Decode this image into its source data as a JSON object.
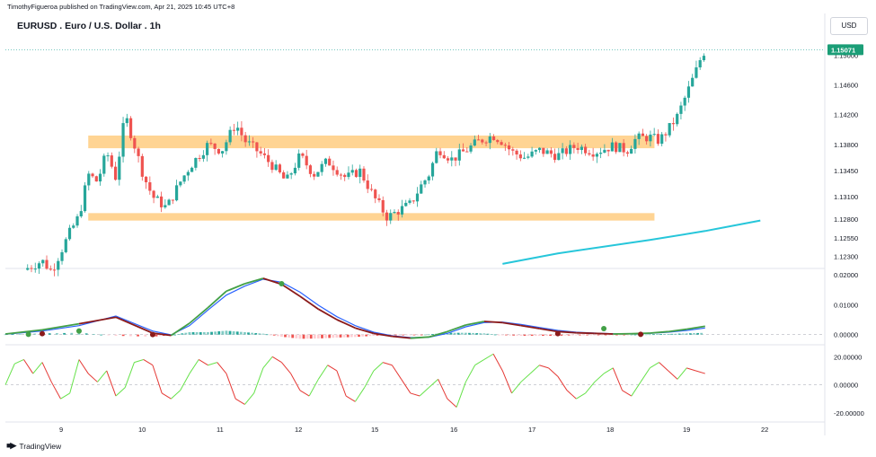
{
  "header": {
    "published_line": "TimothyFigueroa published on TradingView.com, Apr 21, 2025 10:45 UTC+8",
    "symbol_title": "EURUSD . Euro / U.S. Dollar . 1h",
    "currency_button": "USD"
  },
  "footer": {
    "logo_text": "TradingView"
  },
  "colors": {
    "up_candle": "#26a69a",
    "down_candle": "#ef5350",
    "zone_fill": "#ffcc80",
    "ma_line": "#26c6da",
    "macd_line": "#2962ff",
    "signal_green": "#43a047",
    "signal_red": "#8b1a1a",
    "oscillator_up": "#66e24a",
    "oscillator_down": "#e53935"
  },
  "chart_data": [
    {
      "type": "candlestick",
      "title": "EURUSD . Euro / U.S. Dollar . 1h",
      "x_tick_labels": [
        "9",
        "10",
        "11",
        "12",
        "15",
        "16",
        "17",
        "18",
        "19",
        "22"
      ],
      "y_tick_labels": [
        "1.15000",
        "1.14600",
        "1.14200",
        "1.13800",
        "1.13450",
        "1.13100",
        "1.12800",
        "1.12550",
        "1.12300"
      ],
      "last_price_label": "1.15071",
      "ylim": [
        1.1215,
        1.1528
      ],
      "zones": [
        {
          "from": 1.1375,
          "to": 1.1392
        },
        {
          "from": 1.1278,
          "to": 1.1288
        }
      ],
      "moving_average": [
        [
          4.4,
          1.122
        ],
        [
          5.0,
          1.1234
        ],
        [
          6.0,
          1.1252
        ],
        [
          6.6,
          1.1264
        ],
        [
          7.2,
          1.1278
        ]
      ],
      "close_path": [
        [
          -0.8,
          1.1212
        ],
        [
          -0.6,
          1.1224
        ],
        [
          -0.5,
          1.121
        ],
        [
          -0.3,
          1.1262
        ],
        [
          -0.2,
          1.1284
        ],
        [
          -0.1,
          1.134
        ],
        [
          0.0,
          1.133
        ],
        [
          0.1,
          1.137
        ],
        [
          0.2,
          1.1335
        ],
        [
          0.3,
          1.142
        ],
        [
          0.4,
          1.138
        ],
        [
          0.5,
          1.1338
        ],
        [
          0.6,
          1.131
        ],
        [
          0.75,
          1.1295
        ],
        [
          0.9,
          1.133
        ],
        [
          1.0,
          1.135
        ],
        [
          1.2,
          1.138
        ],
        [
          1.35,
          1.1372
        ],
        [
          1.5,
          1.1408
        ],
        [
          1.6,
          1.1385
        ],
        [
          1.75,
          1.137
        ],
        [
          1.9,
          1.1352
        ],
        [
          2.05,
          1.133
        ],
        [
          2.2,
          1.1365
        ],
        [
          2.35,
          1.134
        ],
        [
          2.5,
          1.1358
        ],
        [
          2.7,
          1.1335
        ],
        [
          2.85,
          1.1345
        ],
        [
          3.0,
          1.131
        ],
        [
          3.15,
          1.1282
        ],
        [
          3.25,
          1.129
        ],
        [
          3.4,
          1.13
        ],
        [
          3.5,
          1.1322
        ],
        [
          3.6,
          1.134
        ],
        [
          3.7,
          1.1375
        ],
        [
          3.85,
          1.136
        ],
        [
          4.0,
          1.1372
        ],
        [
          4.15,
          1.1385
        ],
        [
          4.3,
          1.1392
        ],
        [
          4.4,
          1.1384
        ],
        [
          4.5,
          1.137
        ],
        [
          4.65,
          1.1362
        ],
        [
          4.8,
          1.1372
        ],
        [
          5.0,
          1.1365
        ],
        [
          5.2,
          1.1378
        ],
        [
          5.4,
          1.137
        ],
        [
          5.6,
          1.1378
        ],
        [
          5.75,
          1.1372
        ],
        [
          5.85,
          1.1388
        ],
        [
          6.0,
          1.139
        ],
        [
          6.1,
          1.1385
        ],
        [
          6.2,
          1.14
        ],
        [
          6.3,
          1.1418
        ],
        [
          6.4,
          1.1448
        ],
        [
          6.5,
          1.1478
        ],
        [
          6.55,
          1.1495
        ],
        [
          6.6,
          1.1507
        ]
      ]
    },
    {
      "type": "line",
      "title": "",
      "y_tick_labels": [
        "0.02000",
        "0.01000",
        "0.00000"
      ],
      "ylim": [
        -0.0028,
        0.0218
      ],
      "zero_line": 0.0,
      "series": [
        {
          "values_x": [
            -1.0,
            -0.6,
            -0.2,
            0.2,
            0.6,
            0.8,
            1.0,
            1.2,
            1.4,
            1.6,
            1.8,
            2.0,
            2.2,
            2.4,
            2.6,
            2.8,
            3.0,
            3.2,
            3.4,
            3.6,
            3.8,
            4.0,
            4.2,
            4.4,
            4.6,
            4.8,
            5.0,
            5.2,
            5.4,
            5.6,
            5.8,
            6.0,
            6.2,
            6.4,
            6.6
          ],
          "values": [
            0.0002,
            0.0016,
            0.0036,
            0.0058,
            0.0005,
            -0.0003,
            0.0038,
            0.009,
            0.0145,
            0.017,
            0.0188,
            0.0168,
            0.0128,
            0.0085,
            0.005,
            0.0022,
            0.0004,
            -0.0006,
            -0.0012,
            -0.0008,
            0.001,
            0.0032,
            0.0044,
            0.004,
            0.003,
            0.002,
            0.001,
            0.0006,
            0.0004,
            0.0002,
            0.0003,
            0.0005,
            0.001,
            0.0018,
            0.0028
          ]
        },
        {
          "values_x": [
            -1.0,
            -0.6,
            -0.2,
            0.2,
            0.6,
            0.8,
            1.0,
            1.2,
            1.4,
            1.6,
            1.8,
            2.0,
            2.2,
            2.4,
            2.6,
            2.8,
            3.0,
            3.2,
            3.4,
            3.6,
            3.8,
            4.0,
            4.2,
            4.4,
            4.6,
            4.8,
            5.0,
            5.2,
            5.4,
            5.6,
            5.8,
            6.0,
            6.2,
            6.4,
            6.6
          ],
          "values": [
            0.0001,
            0.0012,
            0.003,
            0.0062,
            0.0012,
            -0.0001,
            0.003,
            0.0082,
            0.0132,
            0.0162,
            0.0185,
            0.0175,
            0.0142,
            0.0098,
            0.006,
            0.003,
            0.0008,
            -0.0004,
            -0.001,
            -0.0009,
            0.0004,
            0.0026,
            0.004,
            0.0042,
            0.0034,
            0.0024,
            0.0014,
            0.0008,
            0.0005,
            0.0003,
            0.0003,
            0.0004,
            0.0008,
            0.0014,
            0.0022
          ]
        },
        {
          "values_x": [
            -1.0,
            -0.6,
            -0.2,
            0.2,
            0.6,
            0.8,
            1.0,
            1.2,
            1.4,
            1.6,
            1.8,
            2.0,
            2.2,
            2.4,
            2.6,
            2.8,
            3.0,
            3.2,
            3.4,
            3.6,
            3.8,
            4.0,
            4.2,
            4.4,
            4.6,
            4.8,
            5.0,
            5.2,
            5.4,
            5.6,
            5.8,
            6.0,
            6.2,
            6.4,
            6.6
          ],
          "values": [
            0.0001,
            0.0004,
            0.0006,
            -0.0004,
            -0.0007,
            -0.0002,
            0.0008,
            0.0008,
            0.0013,
            0.0008,
            0.0003,
            -0.0007,
            -0.0014,
            -0.0013,
            -0.001,
            -0.0008,
            -0.0004,
            -0.0002,
            -0.0002,
            0.0001,
            0.0006,
            0.0006,
            0.0004,
            -0.0002,
            -0.0004,
            -0.0004,
            -0.0004,
            -0.0002,
            -0.0001,
            -0.0001,
            0.0,
            0.0001,
            0.0002,
            0.0004,
            0.0006
          ]
        }
      ],
      "dots": [
        [
          -0.75,
          0.0001
        ],
        [
          -0.6,
          0.0003
        ],
        [
          -0.2,
          0.0012
        ],
        [
          0.6,
          0.0
        ],
        [
          2.0,
          0.017
        ],
        [
          5.0,
          0.0003
        ],
        [
          5.5,
          0.002
        ],
        [
          5.9,
          0.0001
        ]
      ]
    },
    {
      "type": "line",
      "title": "",
      "y_tick_labels": [
        "20.00000",
        "0.00000",
        "-20.00000"
      ],
      "ylim": [
        -24,
        26
      ],
      "zero_line": 0,
      "series": [
        {
          "values_x": [
            -1.0,
            -0.9,
            -0.8,
            -0.7,
            -0.6,
            -0.5,
            -0.4,
            -0.3,
            -0.2,
            -0.1,
            0.0,
            0.1,
            0.2,
            0.3,
            0.4,
            0.5,
            0.6,
            0.7,
            0.8,
            0.9,
            1.0,
            1.1,
            1.2,
            1.3,
            1.4,
            1.5,
            1.6,
            1.7,
            1.8,
            1.9,
            2.0,
            2.1,
            2.2,
            2.3,
            2.4,
            2.5,
            2.6,
            2.7,
            2.8,
            2.9,
            3.0,
            3.1,
            3.2,
            3.3,
            3.4,
            3.5,
            3.6,
            3.7,
            3.8,
            3.9,
            4.0,
            4.1,
            4.2,
            4.3,
            4.4,
            4.5,
            4.6,
            4.7,
            4.8,
            4.9,
            5.0,
            5.1,
            5.2,
            5.3,
            5.4,
            5.5,
            5.6,
            5.7,
            5.8,
            5.9,
            6.0,
            6.1,
            6.2,
            6.3,
            6.4,
            6.5,
            6.6
          ],
          "values": [
            0,
            15,
            18,
            8,
            16,
            2,
            -10,
            -6,
            18,
            8,
            2,
            10,
            -8,
            -2,
            16,
            18,
            14,
            -6,
            -10,
            -4,
            8,
            18,
            14,
            16,
            8,
            -10,
            -14,
            -6,
            12,
            20,
            16,
            8,
            -4,
            -8,
            4,
            14,
            10,
            -8,
            -12,
            -2,
            10,
            16,
            14,
            4,
            -6,
            -8,
            -2,
            4,
            -10,
            -16,
            2,
            14,
            18,
            22,
            10,
            -6,
            2,
            8,
            14,
            12,
            6,
            -4,
            -10,
            -6,
            2,
            8,
            12,
            -4,
            -8,
            2,
            12,
            16,
            10,
            4,
            12,
            10,
            8
          ]
        }
      ]
    }
  ]
}
